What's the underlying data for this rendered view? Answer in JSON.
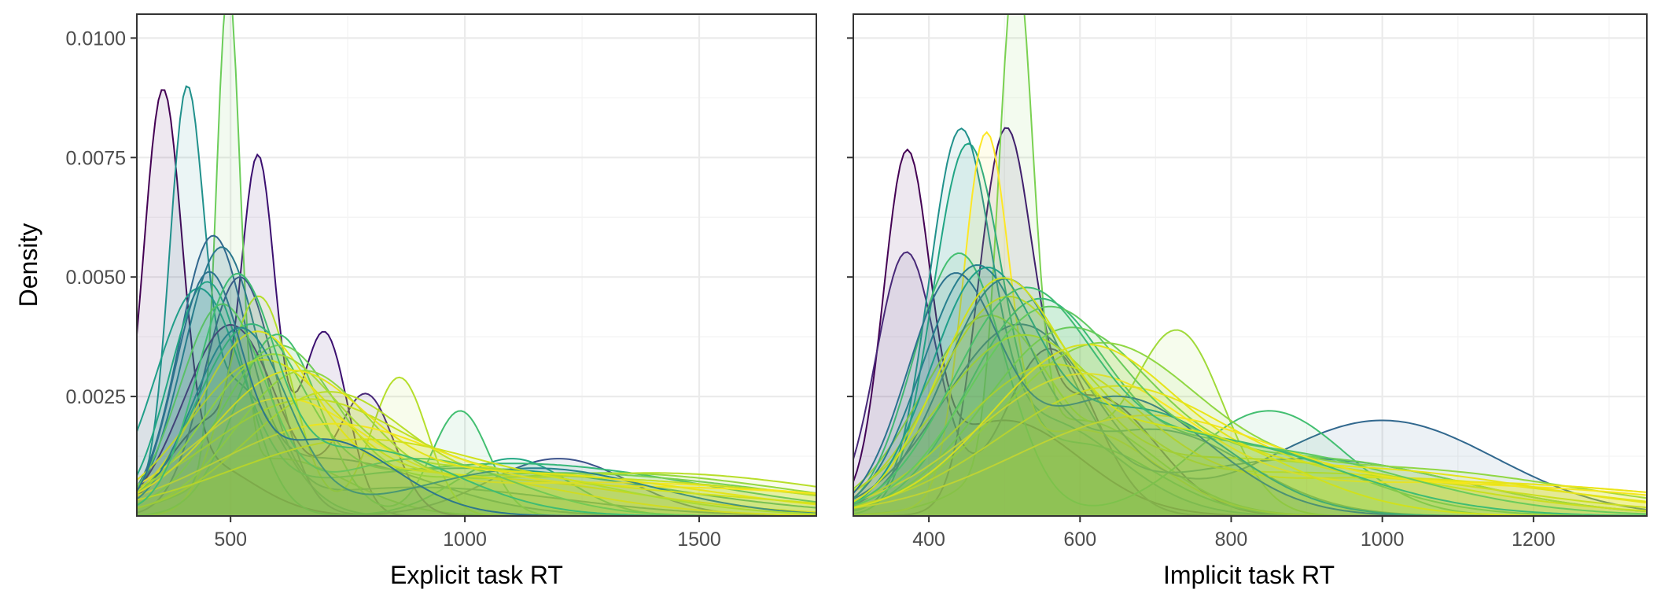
{
  "chart_data": [
    {
      "type": "area",
      "title": "",
      "xlabel": "Explicit task RT",
      "ylabel": "Density",
      "xlim": [
        300,
        1750
      ],
      "ylim": [
        0,
        0.0105
      ],
      "x_ticks": [
        500,
        1000,
        1500
      ],
      "x_tick_labels": [
        "500",
        "1000",
        "1500"
      ],
      "y_ticks": [
        0.0025,
        0.005,
        0.0075,
        0.01
      ],
      "y_tick_labels": [
        "0.0025",
        "0.0050",
        "0.0075",
        "0.0100"
      ],
      "grid": true,
      "legend": "none",
      "colormap": [
        "#440154",
        "#3b528b",
        "#21918c",
        "#5ec962",
        "#fde725",
        "#c8e020"
      ],
      "series": [
        {
          "components": [
            [
              355,
              40,
              0.0079
            ],
            [
              420,
              120,
              0.0012
            ]
          ],
          "color": "#440154"
        },
        {
          "components": [
            [
              560,
              35,
              0.0064
            ],
            [
              700,
              50,
              0.0038
            ],
            [
              460,
              90,
              0.002
            ]
          ],
          "color": "#3b0f70"
        },
        {
          "components": [
            [
              405,
              35,
              0.0072
            ],
            [
              500,
              100,
              0.0028
            ]
          ],
          "color": "#21918c"
        },
        {
          "components": [
            [
              495,
              25,
              0.0102
            ],
            [
              600,
              150,
              0.0012
            ]
          ],
          "color": "#6ccd5a"
        },
        {
          "components": [
            [
              460,
              70,
              0.0052
            ],
            [
              700,
              220,
              0.0012
            ]
          ],
          "color": "#31688e"
        },
        {
          "components": [
            [
              480,
              80,
              0.0054
            ],
            [
              900,
              300,
              0.0006
            ]
          ],
          "color": "#2a788e"
        },
        {
          "components": [
            [
              520,
              75,
              0.005
            ],
            [
              1200,
              150,
              0.0012
            ]
          ],
          "color": "#3b528b"
        },
        {
          "components": [
            [
              450,
              80,
              0.0049
            ],
            [
              1100,
              120,
              0.0012
            ]
          ],
          "color": "#22a884"
        },
        {
          "components": [
            [
              560,
              70,
              0.0046
            ],
            [
              860,
              60,
              0.0029
            ]
          ],
          "color": "#b5de2b"
        },
        {
          "components": [
            [
              600,
              90,
              0.0038
            ],
            [
              990,
              60,
              0.0022
            ]
          ],
          "color": "#43bf71"
        },
        {
          "components": [
            [
              500,
              100,
              0.004
            ],
            [
              790,
              60,
              0.0025
            ]
          ],
          "color": "#482878"
        },
        {
          "components": [
            [
              430,
              90,
              0.0044
            ],
            [
              1000,
              400,
              0.001
            ]
          ],
          "color": "#1f9e89"
        },
        {
          "components": [
            [
              540,
              110,
              0.0036
            ],
            [
              1100,
              400,
              0.0011
            ]
          ],
          "color": "#35b779"
        },
        {
          "components": [
            [
              600,
              120,
              0.0032
            ],
            [
              1200,
              450,
              0.0009
            ]
          ],
          "color": "#6ece58"
        },
        {
          "components": [
            [
              650,
              140,
              0.0028
            ],
            [
              1300,
              400,
              0.0009
            ]
          ],
          "color": "#90d743"
        },
        {
          "components": [
            [
              700,
              170,
              0.0024
            ],
            [
              1400,
              400,
              0.0009
            ]
          ],
          "color": "#b8de29"
        },
        {
          "components": [
            [
              560,
              150,
              0.0029
            ],
            [
              1000,
              350,
              0.0008
            ]
          ],
          "color": "#d8e219"
        },
        {
          "components": [
            [
              600,
              180,
              0.0022
            ],
            [
              1300,
              500,
              0.0007
            ]
          ],
          "color": "#fde725"
        },
        {
          "components": [
            [
              550,
              120,
              0.0034
            ],
            [
              900,
              300,
              0.0009
            ]
          ],
          "color": "#eae51a"
        },
        {
          "components": [
            [
              650,
              200,
              0.002
            ],
            [
              1200,
              500,
              0.0008
            ]
          ],
          "color": "#c2df23"
        },
        {
          "components": [
            [
              700,
              230,
              0.0017
            ],
            [
              1400,
              500,
              0.0006
            ]
          ],
          "color": "#f4e61e"
        },
        {
          "components": [
            [
              480,
              90,
              0.0043
            ],
            [
              900,
              200,
              0.0012
            ]
          ],
          "color": "#5ec962"
        },
        {
          "components": [
            [
              520,
              100,
              0.0039
            ],
            [
              1150,
              250,
              0.001
            ]
          ],
          "color": "#26828e"
        },
        {
          "components": [
            [
              580,
              140,
              0.003
            ],
            [
              1000,
              300,
              0.001
            ]
          ],
          "color": "#a0da39"
        },
        {
          "components": [
            [
              620,
              160,
              0.0026
            ],
            [
              1100,
              400,
              0.0009
            ]
          ],
          "color": "#e5e419"
        },
        {
          "components": [
            [
              750,
              260,
              0.0014
            ],
            [
              1300,
              400,
              0.0005
            ]
          ],
          "color": "#d0e11c"
        },
        {
          "components": [
            [
              450,
              70,
              0.0047
            ],
            [
              700,
              150,
              0.0016
            ]
          ],
          "color": "#2c728e"
        },
        {
          "components": [
            [
              510,
              80,
              0.0045
            ],
            [
              780,
              200,
              0.0014
            ]
          ],
          "color": "#3fbc73"
        }
      ]
    },
    {
      "type": "area",
      "title": "",
      "xlabel": "Implicit task RT",
      "ylabel": "",
      "xlim": [
        300,
        1350
      ],
      "ylim": [
        0,
        0.0105
      ],
      "x_ticks": [
        400,
        600,
        800,
        1000,
        1200
      ],
      "x_tick_labels": [
        "400",
        "600",
        "800",
        "1000",
        "1200"
      ],
      "y_ticks": [
        0.0025,
        0.005,
        0.0075,
        0.01
      ],
      "y_tick_labels": [],
      "grid": true,
      "legend": "none",
      "colormap": [
        "#440154",
        "#3b528b",
        "#21918c",
        "#5ec962",
        "#fde725",
        "#c8e020"
      ],
      "series": [
        {
          "components": [
            [
              370,
              30,
              0.0068
            ],
            [
              500,
              100,
              0.002
            ]
          ],
          "color": "#440154"
        },
        {
          "components": [
            [
              370,
              40,
              0.0055
            ],
            [
              560,
              60,
              0.0035
            ]
          ],
          "color": "#482878"
        },
        {
          "components": [
            [
              500,
              35,
              0.0073
            ],
            [
              620,
              80,
              0.0025
            ]
          ],
          "color": "#3b0f70"
        },
        {
          "components": [
            [
              515,
              22,
              0.0103
            ],
            [
              600,
              100,
              0.002
            ]
          ],
          "color": "#7ad151"
        },
        {
          "components": [
            [
              450,
              45,
              0.0073
            ],
            [
              600,
              100,
              0.0015
            ]
          ],
          "color": "#22a884"
        },
        {
          "components": [
            [
              440,
              40,
              0.007
            ],
            [
              550,
              100,
              0.002
            ]
          ],
          "color": "#21918c"
        },
        {
          "components": [
            [
              475,
              30,
              0.0072
            ],
            [
              600,
              100,
              0.0018
            ]
          ],
          "color": "#fde725"
        },
        {
          "components": [
            [
              520,
              100,
              0.004
            ],
            [
              1000,
              150,
              0.002
            ]
          ],
          "color": "#31688e"
        },
        {
          "components": [
            [
              480,
              90,
              0.0042
            ],
            [
              730,
              60,
              0.0038
            ]
          ],
          "color": "#a0da39"
        },
        {
          "components": [
            [
              440,
              60,
              0.0055
            ],
            [
              850,
              100,
              0.0022
            ]
          ],
          "color": "#43bf71"
        },
        {
          "components": [
            [
              500,
              80,
              0.0048
            ],
            [
              900,
              200,
              0.0012
            ]
          ],
          "color": "#2a788e"
        },
        {
          "components": [
            [
              460,
              70,
              0.005
            ],
            [
              700,
              120,
              0.0018
            ]
          ],
          "color": "#26828e"
        },
        {
          "components": [
            [
              540,
              90,
              0.0042
            ],
            [
              800,
              150,
              0.0015
            ]
          ],
          "color": "#35b779"
        },
        {
          "components": [
            [
              580,
              110,
              0.0036
            ],
            [
              900,
              200,
              0.0012
            ]
          ],
          "color": "#6ece58"
        },
        {
          "components": [
            [
              620,
              130,
              0.0033
            ],
            [
              1000,
              250,
              0.001
            ]
          ],
          "color": "#90d743"
        },
        {
          "components": [
            [
              520,
              110,
              0.0035
            ],
            [
              900,
              250,
              0.0009
            ]
          ],
          "color": "#b8de29"
        },
        {
          "components": [
            [
              560,
              120,
              0.003
            ],
            [
              1000,
              250,
              0.0008
            ]
          ],
          "color": "#d8e219"
        },
        {
          "components": [
            [
              600,
              140,
              0.0028
            ],
            [
              1100,
              300,
              0.0007
            ]
          ],
          "color": "#fde725"
        },
        {
          "components": [
            [
              640,
              150,
              0.0025
            ],
            [
              1100,
              300,
              0.0007
            ]
          ],
          "color": "#eae51a"
        },
        {
          "components": [
            [
              500,
              90,
              0.004
            ],
            [
              800,
              250,
              0.0012
            ]
          ],
          "color": "#c2df23"
        },
        {
          "components": [
            [
              680,
              170,
              0.002
            ],
            [
              1150,
              250,
              0.0006
            ]
          ],
          "color": "#f4e61e"
        },
        {
          "components": [
            [
              430,
              60,
              0.0046
            ],
            [
              650,
              120,
              0.0025
            ]
          ],
          "color": "#2c728e"
        },
        {
          "components": [
            [
              470,
              70,
              0.0047
            ],
            [
              680,
              120,
              0.0022
            ]
          ],
          "color": "#1f9e89"
        },
        {
          "components": [
            [
              550,
              100,
              0.0038
            ],
            [
              820,
              200,
              0.0014
            ]
          ],
          "color": "#5ec962"
        },
        {
          "components": [
            [
              600,
              120,
              0.0032
            ],
            [
              950,
              250,
              0.001
            ]
          ],
          "color": "#e5e419"
        },
        {
          "components": [
            [
              520,
              90,
              0.0041
            ],
            [
              760,
              180,
              0.0016
            ]
          ],
          "color": "#3fbc73"
        },
        {
          "components": [
            [
              490,
              80,
              0.0044
            ],
            [
              720,
              150,
              0.0018
            ]
          ],
          "color": "#d0e11c"
        }
      ]
    }
  ]
}
